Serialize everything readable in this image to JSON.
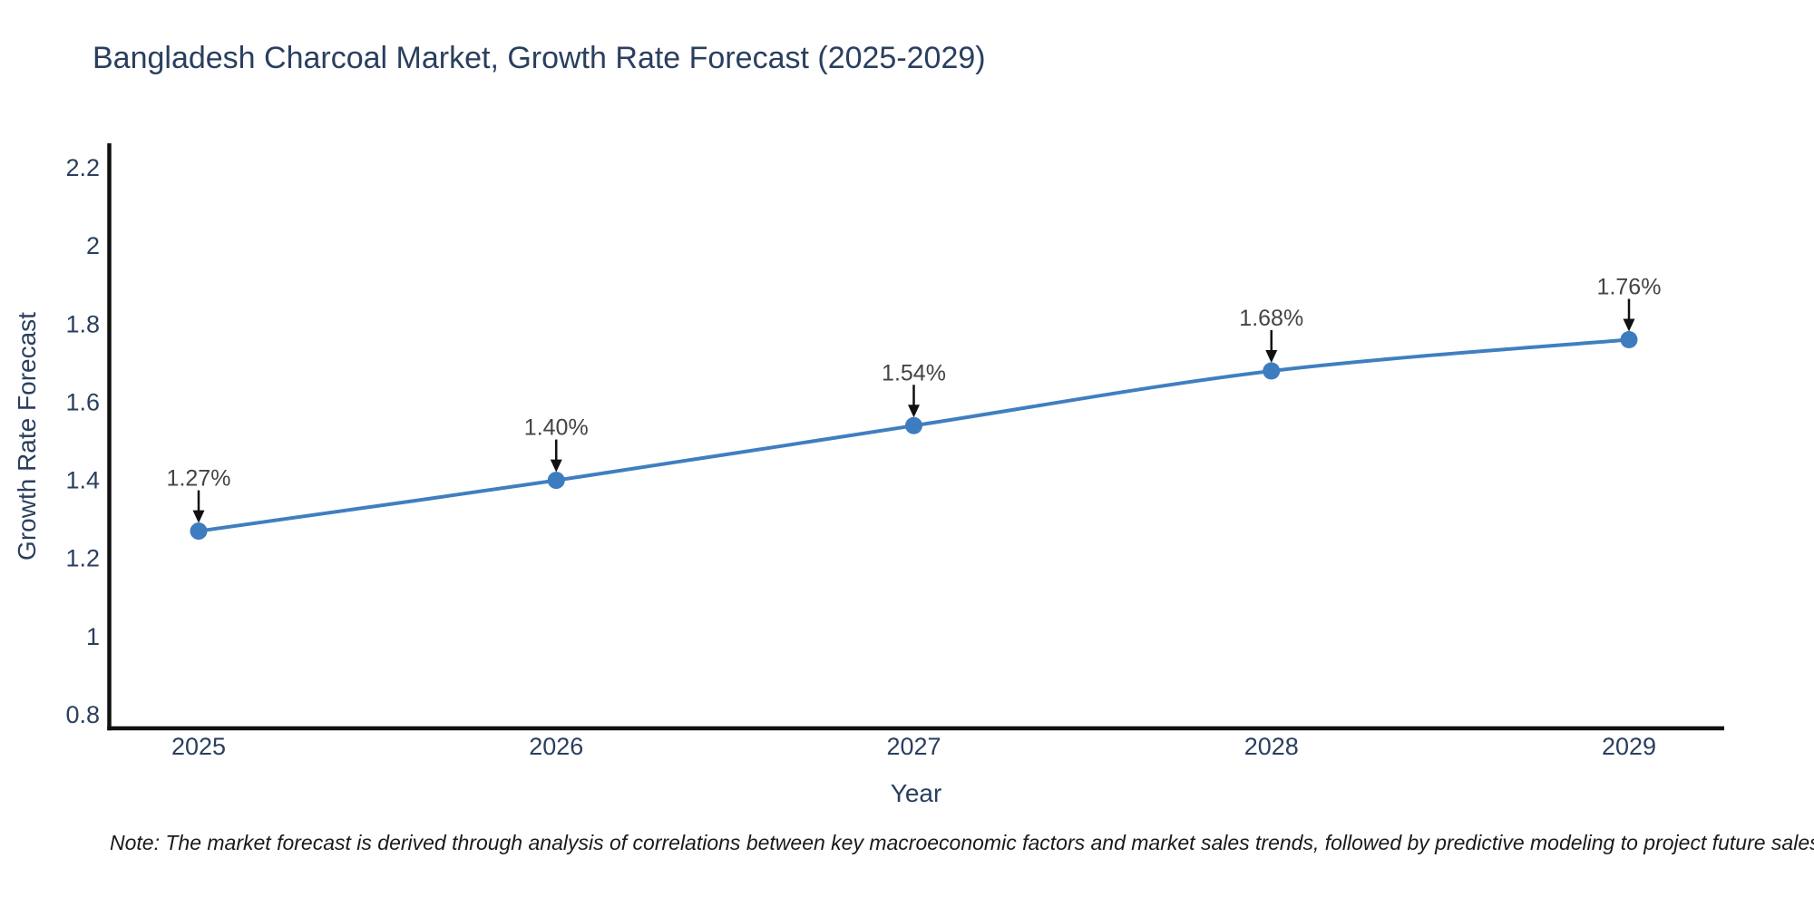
{
  "note": {
    "text": "Note: The market forecast is derived through analysis of correlations between key macroeconomic factors and market sales trends, followed by predictive modeling to project future sales"
  },
  "colors": {
    "title_text": "#2a3f5f",
    "tick_text": "#2a3f5f",
    "series_line": "#3f7fbf",
    "marker_fill": "#3d7cbf",
    "annotation_text": "#444444",
    "annotation_arrow": "#111111",
    "axis_line": "#111111",
    "background": "#ffffff"
  },
  "chart_data": {
    "type": "line",
    "title": "Bangladesh Charcoal Market, Growth Rate Forecast (2025-2029)",
    "xlabel": "Year",
    "ylabel": "Growth Rate Forecast",
    "x": [
      2025,
      2026,
      2027,
      2028,
      2029
    ],
    "x_tick_labels": [
      "2025",
      "2026",
      "2027",
      "2028",
      "2029"
    ],
    "series": [
      {
        "name": "Growth Rate Forecast",
        "values": [
          1.27,
          1.4,
          1.54,
          1.68,
          1.76
        ],
        "point_labels": [
          "1.27%",
          "1.40%",
          "1.54%",
          "1.68%",
          "1.76%"
        ]
      }
    ],
    "y_ticks": [
      {
        "value": 0.8,
        "label": "0.8"
      },
      {
        "value": 1.0,
        "label": "1"
      },
      {
        "value": 1.2,
        "label": "1.2"
      },
      {
        "value": 1.4,
        "label": "1.4"
      },
      {
        "value": 1.6,
        "label": "1.6"
      },
      {
        "value": 1.8,
        "label": "1.8"
      },
      {
        "value": 2.0,
        "label": "2"
      },
      {
        "value": 2.2,
        "label": "2.2"
      }
    ],
    "ylim": [
      0.72,
      2.26
    ],
    "grid": false,
    "legend": "none",
    "line_shape": "spline",
    "marker": "circle"
  }
}
